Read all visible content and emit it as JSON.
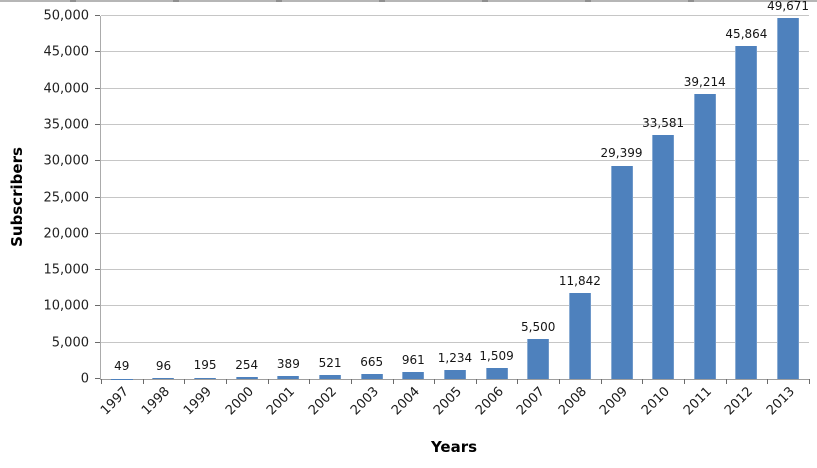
{
  "page": {
    "background": "#ffffff"
  },
  "chart_data": {
    "type": "bar",
    "title": "",
    "xlabel": "Years",
    "ylabel": "Subscribers",
    "categories": [
      "1997",
      "1998",
      "1999",
      "2000",
      "2001",
      "2002",
      "2003",
      "2004",
      "2005",
      "2006",
      "2007",
      "2008",
      "2009",
      "2010",
      "2011",
      "2012",
      "2013"
    ],
    "values": [
      49,
      96,
      195,
      254,
      389,
      521,
      665,
      961,
      1234,
      1509,
      5500,
      11842,
      29399,
      33581,
      39214,
      45864,
      49671
    ],
    "data_labels": [
      "49",
      "96",
      "195",
      "254",
      "389",
      "521",
      "665",
      "961",
      "1,234",
      "1,509",
      "5,500",
      "11,842",
      "29,399",
      "33,581",
      "39,214",
      "45,864",
      "49,671"
    ],
    "ylim": [
      0,
      50000
    ],
    "ytick_step": 5000,
    "ytick_labels": [
      "0",
      "5,000",
      "10,000",
      "15,000",
      "20,000",
      "25,000",
      "30,000",
      "35,000",
      "40,000",
      "45,000",
      "50,000"
    ],
    "grid": true,
    "legend": "none",
    "bar_color": "#4E81BD",
    "gridline_color": "#C6C6C6",
    "axis_color": "#9E9E9E",
    "text_color": "#1A1A1A"
  }
}
